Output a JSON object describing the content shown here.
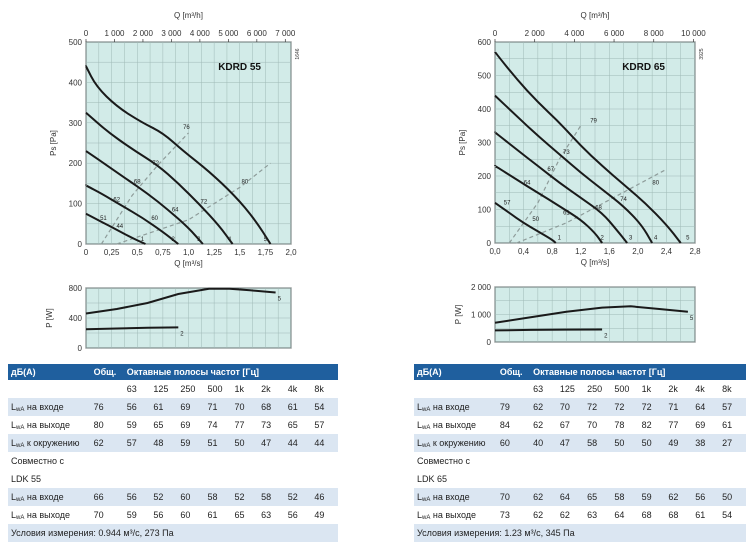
{
  "tag": "",
  "panels": [
    {
      "id": "kdrd55",
      "model": "KDRD 55",
      "code": "1646",
      "flow_m3h_label": "Q [m³/h]",
      "flow_m3h_ticks": [
        "0",
        "1 000",
        "2 000",
        "3 000",
        "4 000",
        "5 000",
        "6 000",
        "7 000"
      ],
      "flow_m3s_label": "Q [m³/s]",
      "power_label": "P [W]",
      "table": {
        "head": [
          "дБ(A)",
          "Общ.",
          "Октавные полосы частот [Гц]"
        ],
        "freqs": [
          "63",
          "125",
          "250",
          "500",
          "1k",
          "2k",
          "4k",
          "8k"
        ],
        "rows": [
          {
            "label": "L",
            "sub": "wA",
            "rest": " на входе",
            "total": "76",
            "bands": [
              "56",
              "61",
              "69",
              "71",
              "70",
              "68",
              "61",
              "54"
            ]
          },
          {
            "label": "L",
            "sub": "wA",
            "rest": " на выходе",
            "total": "80",
            "bands": [
              "59",
              "65",
              "69",
              "74",
              "77",
              "73",
              "65",
              "57"
            ]
          },
          {
            "label": "L",
            "sub": "wA",
            "rest": " к окружению",
            "total": "62",
            "bands": [
              "57",
              "48",
              "59",
              "51",
              "50",
              "47",
              "44",
              "44"
            ]
          }
        ],
        "compat_line1": "Совместно с",
        "compat_line2": "LDK 55",
        "compat_rows": [
          {
            "label": "L",
            "sub": "wA",
            "rest": " на входе",
            "total": "66",
            "bands": [
              "56",
              "52",
              "60",
              "58",
              "52",
              "58",
              "52",
              "46"
            ]
          },
          {
            "label": "L",
            "sub": "wA",
            "rest": " на выходе",
            "total": "70",
            "bands": [
              "59",
              "56",
              "60",
              "61",
              "65",
              "63",
              "56",
              "49"
            ]
          }
        ],
        "conditions": "Условия измерения: 0.944 м³/с, 273 Па"
      }
    },
    {
      "id": "kdrd65",
      "model": "KDRD 65",
      "code": "3925",
      "flow_m3h_label": "Q [m³/h]",
      "flow_m3h_ticks": [
        "0",
        "2 000",
        "4 000",
        "6 000",
        "8 000",
        "10 000"
      ],
      "flow_m3s_label": "Q [m³/s]",
      "power_label": "P [W]",
      "table": {
        "head": [
          "дБ(A)",
          "Общ.",
          "Октавные полосы частот [Гц]"
        ],
        "freqs": [
          "63",
          "125",
          "250",
          "500",
          "1k",
          "2k",
          "4k",
          "8k"
        ],
        "rows": [
          {
            "label": "L",
            "sub": "wA",
            "rest": " на входе",
            "total": "79",
            "bands": [
              "62",
              "70",
              "72",
              "72",
              "72",
              "71",
              "64",
              "57"
            ]
          },
          {
            "label": "L",
            "sub": "wA",
            "rest": " на выходе",
            "total": "84",
            "bands": [
              "62",
              "67",
              "70",
              "78",
              "82",
              "77",
              "69",
              "61"
            ]
          },
          {
            "label": "L",
            "sub": "wA",
            "rest": " к окружению",
            "total": "60",
            "bands": [
              "40",
              "47",
              "58",
              "50",
              "50",
              "49",
              "38",
              "27"
            ]
          }
        ],
        "compat_line1": "Совместно с",
        "compat_line2": "LDK 65",
        "compat_rows": [
          {
            "label": "L",
            "sub": "wA",
            "rest": " на входе",
            "total": "70",
            "bands": [
              "62",
              "64",
              "65",
              "58",
              "59",
              "62",
              "56",
              "50"
            ]
          },
          {
            "label": "L",
            "sub": "wA",
            "rest": " на выходе",
            "total": "73",
            "bands": [
              "62",
              "62",
              "63",
              "64",
              "68",
              "68",
              "61",
              "54"
            ]
          }
        ],
        "conditions": "Условия измерения: 1.23 м³/с, 345 Па"
      }
    }
  ],
  "chart_data": [
    {
      "type": "line",
      "title": "KDRD 55",
      "xlabel": "Q [m³/s]",
      "ylabel": "Ps [Pa]",
      "xlim": [
        0,
        2.0
      ],
      "ylim": [
        0,
        500
      ],
      "x_ticks": [
        "0",
        "0,25",
        "0,5",
        "0,75",
        "1,0",
        "1,25",
        "1,5",
        "1,75",
        "2,0"
      ],
      "y_ticks": [
        "0",
        "100",
        "200",
        "300",
        "400",
        "500"
      ],
      "grid": true,
      "background": "#d2ebe8",
      "curve_color": "#1a1a1a",
      "series": [
        {
          "name": "5",
          "points": [
            [
              0,
              440
            ],
            [
              0.1,
              390
            ],
            [
              0.3,
              340
            ],
            [
              0.55,
              300
            ],
            [
              0.75,
              275
            ],
            [
              0.95,
              230
            ],
            [
              1.2,
              180
            ],
            [
              1.45,
              120
            ],
            [
              1.65,
              60
            ],
            [
              1.8,
              0
            ]
          ]
        },
        {
          "name": "4",
          "points": [
            [
              0,
              325
            ],
            [
              0.2,
              280
            ],
            [
              0.45,
              235
            ],
            [
              0.7,
              195
            ],
            [
              0.9,
              150
            ],
            [
              1.1,
              100
            ],
            [
              1.3,
              45
            ],
            [
              1.43,
              0
            ]
          ]
        },
        {
          "name": "3",
          "points": [
            [
              0,
              230
            ],
            [
              0.2,
              195
            ],
            [
              0.4,
              160
            ],
            [
              0.6,
              125
            ],
            [
              0.8,
              85
            ],
            [
              1.0,
              40
            ],
            [
              1.14,
              0
            ]
          ]
        },
        {
          "name": "2",
          "points": [
            [
              0,
              145
            ],
            [
              0.15,
              125
            ],
            [
              0.35,
              95
            ],
            [
              0.55,
              65
            ],
            [
              0.75,
              30
            ],
            [
              0.9,
              0
            ]
          ]
        },
        {
          "name": "1",
          "points": [
            [
              0,
              75
            ],
            [
              0.15,
              55
            ],
            [
              0.3,
              35
            ],
            [
              0.45,
              15
            ],
            [
              0.58,
              0
            ]
          ]
        }
      ],
      "dashed_series": [
        {
          "name": "efficiency-1",
          "points": [
            [
              0.15,
              0
            ],
            [
              0.45,
              120
            ],
            [
              0.7,
              195
            ],
            [
              1.0,
              275
            ]
          ]
        },
        {
          "name": "efficiency-2",
          "points": [
            [
              0.3,
              0
            ],
            [
              1.0,
              60
            ],
            [
              1.5,
              140
            ],
            [
              1.8,
              200
            ]
          ]
        }
      ],
      "annotations": [
        {
          "text": "76",
          "x": 0.98,
          "y": 285
        },
        {
          "text": "72",
          "x": 0.68,
          "y": 195
        },
        {
          "text": "68",
          "x": 0.5,
          "y": 150
        },
        {
          "text": "62",
          "x": 0.3,
          "y": 105
        },
        {
          "text": "51",
          "x": 0.17,
          "y": 60
        },
        {
          "text": "44",
          "x": 0.33,
          "y": 40
        },
        {
          "text": "60",
          "x": 0.67,
          "y": 60
        },
        {
          "text": "64",
          "x": 0.87,
          "y": 80
        },
        {
          "text": "72",
          "x": 1.15,
          "y": 100
        },
        {
          "text": "80",
          "x": 1.55,
          "y": 150
        },
        {
          "text": "1",
          "x": 0.55,
          "y": 8
        },
        {
          "text": "2",
          "x": 0.85,
          "y": 8
        },
        {
          "text": "3",
          "x": 1.1,
          "y": 8
        },
        {
          "text": "4",
          "x": 1.4,
          "y": 8
        },
        {
          "text": "5",
          "x": 1.75,
          "y": 8
        }
      ],
      "power": {
        "ylabel": "P [W]",
        "ylim": [
          0,
          800
        ],
        "y_ticks": [
          "0",
          "400",
          "800"
        ],
        "series": [
          {
            "name": "5",
            "points": [
              [
                0,
                460
              ],
              [
                0.3,
                520
              ],
              [
                0.6,
                600
              ],
              [
                0.9,
                720
              ],
              [
                1.2,
                790
              ],
              [
                1.4,
                790
              ],
              [
                1.6,
                770
              ],
              [
                1.85,
                740
              ]
            ]
          },
          {
            "name": "2",
            "points": [
              [
                0,
                250
              ],
              [
                0.3,
                260
              ],
              [
                0.6,
                270
              ],
              [
                0.9,
                275
              ]
            ]
          }
        ]
      }
    },
    {
      "type": "line",
      "title": "KDRD 65",
      "xlabel": "Q [m³/s]",
      "ylabel": "Ps [Pa]",
      "xlim": [
        0,
        2.8
      ],
      "ylim": [
        0,
        600
      ],
      "x_ticks": [
        "0,0",
        "0,4",
        "0,8",
        "1,2",
        "1,6",
        "2,0",
        "2,4",
        "2,8"
      ],
      "y_ticks": [
        "0",
        "100",
        "200",
        "300",
        "400",
        "500",
        "600"
      ],
      "grid": true,
      "background": "#d2ebe8",
      "curve_color": "#1a1a1a",
      "series": [
        {
          "name": "5",
          "points": [
            [
              0,
              570
            ],
            [
              0.3,
              490
            ],
            [
              0.6,
              420
            ],
            [
              0.9,
              360
            ],
            [
              1.2,
              290
            ],
            [
              1.5,
              230
            ],
            [
              1.8,
              175
            ],
            [
              2.1,
              120
            ],
            [
              2.4,
              55
            ],
            [
              2.6,
              0
            ]
          ]
        },
        {
          "name": "4",
          "points": [
            [
              0,
              440
            ],
            [
              0.3,
              380
            ],
            [
              0.6,
              320
            ],
            [
              0.9,
              265
            ],
            [
              1.2,
              210
            ],
            [
              1.5,
              160
            ],
            [
              1.8,
              110
            ],
            [
              2.05,
              55
            ],
            [
              2.2,
              0
            ]
          ]
        },
        {
          "name": "3",
          "points": [
            [
              0,
              330
            ],
            [
              0.3,
              280
            ],
            [
              0.6,
              230
            ],
            [
              0.9,
              180
            ],
            [
              1.2,
              135
            ],
            [
              1.5,
              90
            ],
            [
              1.7,
              40
            ],
            [
              1.85,
              0
            ]
          ]
        },
        {
          "name": "2",
          "points": [
            [
              0,
              230
            ],
            [
              0.3,
              190
            ],
            [
              0.6,
              150
            ],
            [
              0.9,
              110
            ],
            [
              1.2,
              70
            ],
            [
              1.4,
              30
            ],
            [
              1.5,
              0
            ]
          ]
        },
        {
          "name": "1",
          "points": [
            [
              0,
              120
            ],
            [
              0.2,
              90
            ],
            [
              0.4,
              60
            ],
            [
              0.6,
              35
            ],
            [
              0.8,
              10
            ],
            [
              0.85,
              0
            ]
          ]
        }
      ],
      "dashed_series": [
        {
          "name": "efficiency-1",
          "points": [
            [
              0.2,
              0
            ],
            [
              0.6,
              120
            ],
            [
              0.9,
              250
            ],
            [
              1.2,
              350
            ]
          ]
        },
        {
          "name": "efficiency-2",
          "points": [
            [
              0.3,
              0
            ],
            [
              1.0,
              60
            ],
            [
              1.7,
              140
            ],
            [
              2.4,
              220
            ]
          ]
        }
      ],
      "annotations": [
        {
          "text": "79",
          "x": 1.38,
          "y": 360
        },
        {
          "text": "73",
          "x": 1.0,
          "y": 265
        },
        {
          "text": "67",
          "x": 0.78,
          "y": 215
        },
        {
          "text": "64",
          "x": 0.45,
          "y": 175
        },
        {
          "text": "57",
          "x": 0.17,
          "y": 115
        },
        {
          "text": "50",
          "x": 0.57,
          "y": 65
        },
        {
          "text": "61",
          "x": 1.0,
          "y": 85
        },
        {
          "text": "68",
          "x": 1.45,
          "y": 100
        },
        {
          "text": "74",
          "x": 1.8,
          "y": 125
        },
        {
          "text": "80",
          "x": 2.25,
          "y": 175
        },
        {
          "text": "1",
          "x": 0.9,
          "y": 10
        },
        {
          "text": "2",
          "x": 1.5,
          "y": 10
        },
        {
          "text": "3",
          "x": 1.9,
          "y": 10
        },
        {
          "text": "4",
          "x": 2.25,
          "y": 10
        },
        {
          "text": "5",
          "x": 2.7,
          "y": 10
        }
      ],
      "power": {
        "ylabel": "P [W]",
        "ylim": [
          0,
          2000
        ],
        "y_ticks": [
          "0",
          "1 000",
          "2 000"
        ],
        "series": [
          {
            "name": "5",
            "points": [
              [
                0,
                700
              ],
              [
                0.5,
                900
              ],
              [
                1.0,
                1100
              ],
              [
                1.5,
                1250
              ],
              [
                1.9,
                1300
              ],
              [
                2.3,
                1200
              ],
              [
                2.7,
                1100
              ]
            ]
          },
          {
            "name": "2",
            "points": [
              [
                0,
                420
              ],
              [
                0.5,
                440
              ],
              [
                1.0,
                450
              ],
              [
                1.5,
                455
              ]
            ]
          }
        ]
      }
    }
  ]
}
